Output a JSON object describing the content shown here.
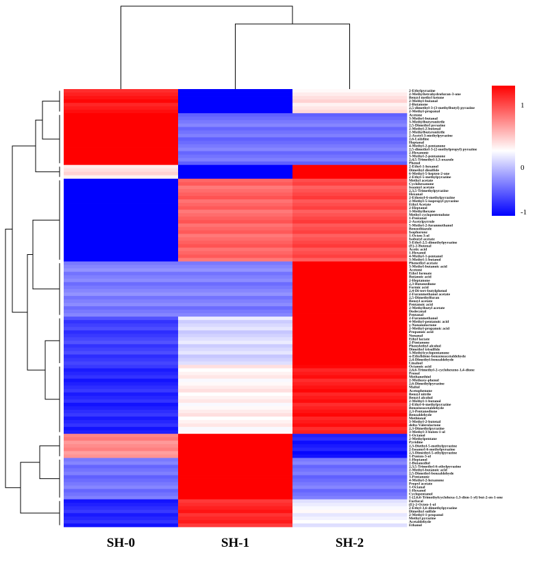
{
  "chart_data": {
    "type": "heatmap",
    "title": "",
    "columns": [
      "SH-0",
      "SH-1",
      "SH-2"
    ],
    "colorbar": {
      "min": -1,
      "max": 1,
      "ticks": [
        "1",
        "0",
        "-1"
      ],
      "colors": {
        "low": "#0000ff",
        "mid": "#ffffff",
        "high": "#ff0000"
      }
    },
    "groups": [
      {
        "rows": [
          "2-Ethylpyrazine",
          "2-Methyltetrahydrofuran-3-one",
          "Benzyl methyl ketone",
          "2-Methyl-butanal",
          "2-Butanone",
          "2,5-dimethyl-3-(3-methylbutyl) pyrazine",
          "2-Methyl-propanal"
        ],
        "values": [
          0.9,
          -1.0,
          0.1
        ]
      },
      {
        "rows": [
          "Acetone",
          "3-Methyl-butanal",
          "3-Methylbutyronitrile",
          "2,5-Dimethyl pyrazine",
          "2-Methyl-2-butenal",
          "2-Methylbutyronitrile",
          "2-Acetyl-3-methylpyrazine",
          "2,6-Lutidine",
          "Heptanal",
          "4-Methyl-2-pentanone",
          "2,5-dimethyl-3-(2-methylpropyl) pyrazine",
          "2-Hexanone",
          "3-Methyl-2-pentanone",
          "2,4,5-Trimethyl-1,3-oxazole",
          "Phenol"
        ],
        "values": [
          1.0,
          -0.55,
          -0.55
        ]
      },
      {
        "rows": [
          "2-Ethyl-1-hexanol",
          "Dimethyl disulfide",
          "6-Methyl-5-hepten-2-one",
          "2-Ethyl-5-methylpyrazine"
        ],
        "values": [
          0.1,
          -1.0,
          1.0
        ]
      },
      {
        "rows": [
          "Methyl acetate",
          "Cyclohexanone",
          "Isoamyl acetate",
          "2,3,5-Trimethylpyrazine",
          "Hexanal",
          "2-Ethenyl-6-methylpyrazine",
          "2-Methyl-5-isopropyl pyrazine",
          "Ethyl Acetate",
          "2-Heptanol",
          "3-Methylhexane",
          "Methyl cyclopentenolone",
          "1-Pentanol",
          "2-Acetylpyrrole",
          "5-Methyl-2-furanmethanol",
          "Benzothiazole",
          "Isophorone",
          "1-Octen-3-ol",
          "Isobutyl acetate",
          "3-Ethyl-2,5-dimethylpyrazine",
          "(E)-2-Butenal",
          "Acetic acid",
          "1-Hexanol",
          "4-Methyl-1-pentanol",
          "3-Methyl-1-butanol"
        ],
        "values": [
          -1.0,
          0.6,
          0.7
        ]
      },
      {
        "rows": [
          "Phenethyl acetate",
          "3-Methyl-butanoic acid",
          "Acetone",
          "Ethyl formate",
          "Butanoic acid",
          "2-Heptanone",
          "2,3-Butanedione",
          "Formic acid",
          "2,4-Di-tert-butylphenol",
          "2-Furanmethanol acetate",
          "2,5-Dimethylfuran",
          "Benzyl acetate",
          "Pentanoic acid",
          "2-Methylbutyl acetate",
          "Dodecanal",
          "Pentanal"
        ],
        "values": [
          -0.5,
          -0.5,
          1.0
        ]
      },
      {
        "rows": [
          "2-Furanmethanol",
          "4-Methyl-pentanoic acid",
          "γ-Nonanolactone",
          "2-Methyl-propanoic acid",
          "Propanoic acid",
          "Nonanal",
          "Ethyl lactate",
          "2-Pentanone",
          "Phenylethyl alcohol",
          "Dimethyl trisulfide",
          "3-Methylcyclopentanone",
          "α-Ethylidene-benzeneacetaldehyde",
          "2,4-Dimethyl-benzaldehyde",
          "Linalool"
        ],
        "values": [
          -0.75,
          -0.15,
          1.0
        ]
      },
      {
        "rows": [
          "Octanoic acid",
          "2,6,6-Trimethyl-2-cyclohexene-1,4-dione",
          "Prenol",
          "Methanethiol",
          "2-Methoxy-phenol",
          "2,6-Dimethylpyrazine",
          "Maltol",
          "Acetophenone",
          "Benzyl nitrile",
          "Benzyl alcohol",
          "2-Methyl-1-butanol",
          "2-Ethyl-6-methylpyrazine",
          "Benzeneacetaldehyde",
          "2,3-Pentanedione",
          "Benzaldehyde",
          "Methional",
          "3-Methyl-2-butenal",
          "delta-Valerolactone",
          "2,3-Dimethylpyrazine",
          "3-Methyl-3-buten-1-ol"
        ],
        "values": [
          -0.85,
          0.05,
          0.9
        ]
      },
      {
        "rows": [
          "1-Octanol",
          "2-Methylpentane",
          "Pyridine",
          "2,3-Diethyl-5-methylpyrazine",
          "2-Isoamyl-6-methylpyrazine",
          "2,3-Dimethyl-5-ethylpyrazine",
          "1-Penten-3-ol"
        ],
        "values": [
          0.45,
          1.0,
          -0.9
        ]
      },
      {
        "rows": [
          "1-Heptanol",
          "2-Butanediol",
          "2,3,5-Trimethyl-6-ethylpyrazine",
          "2-Methyl-butanoic acid",
          "2,5-Dimethyl-benzaldehyde",
          "3-Pentanone",
          "4-Methyl-2-hexanone",
          "Propyl acetate",
          "1-Octanal",
          "1-Hexanol",
          "Cyclopentanol",
          "1-(2,6,6-Trimethylcyclohexa-1,3-dien-1-yl) but-2-en-1-one"
        ],
        "values": [
          -0.55,
          1.0,
          -0.55
        ]
      },
      {
        "rows": [
          "Furfural",
          "(E)-2-Octen-1-ol",
          "2-Ethyl-3,6-dimethylpyrazine",
          "Dimethyl sulfide",
          "2-Methyl-1-propanol",
          "Methyl pyrazine",
          "Acetaldehyde",
          "Ethanol"
        ],
        "values": [
          -0.85,
          0.85,
          -0.05
        ]
      }
    ]
  }
}
